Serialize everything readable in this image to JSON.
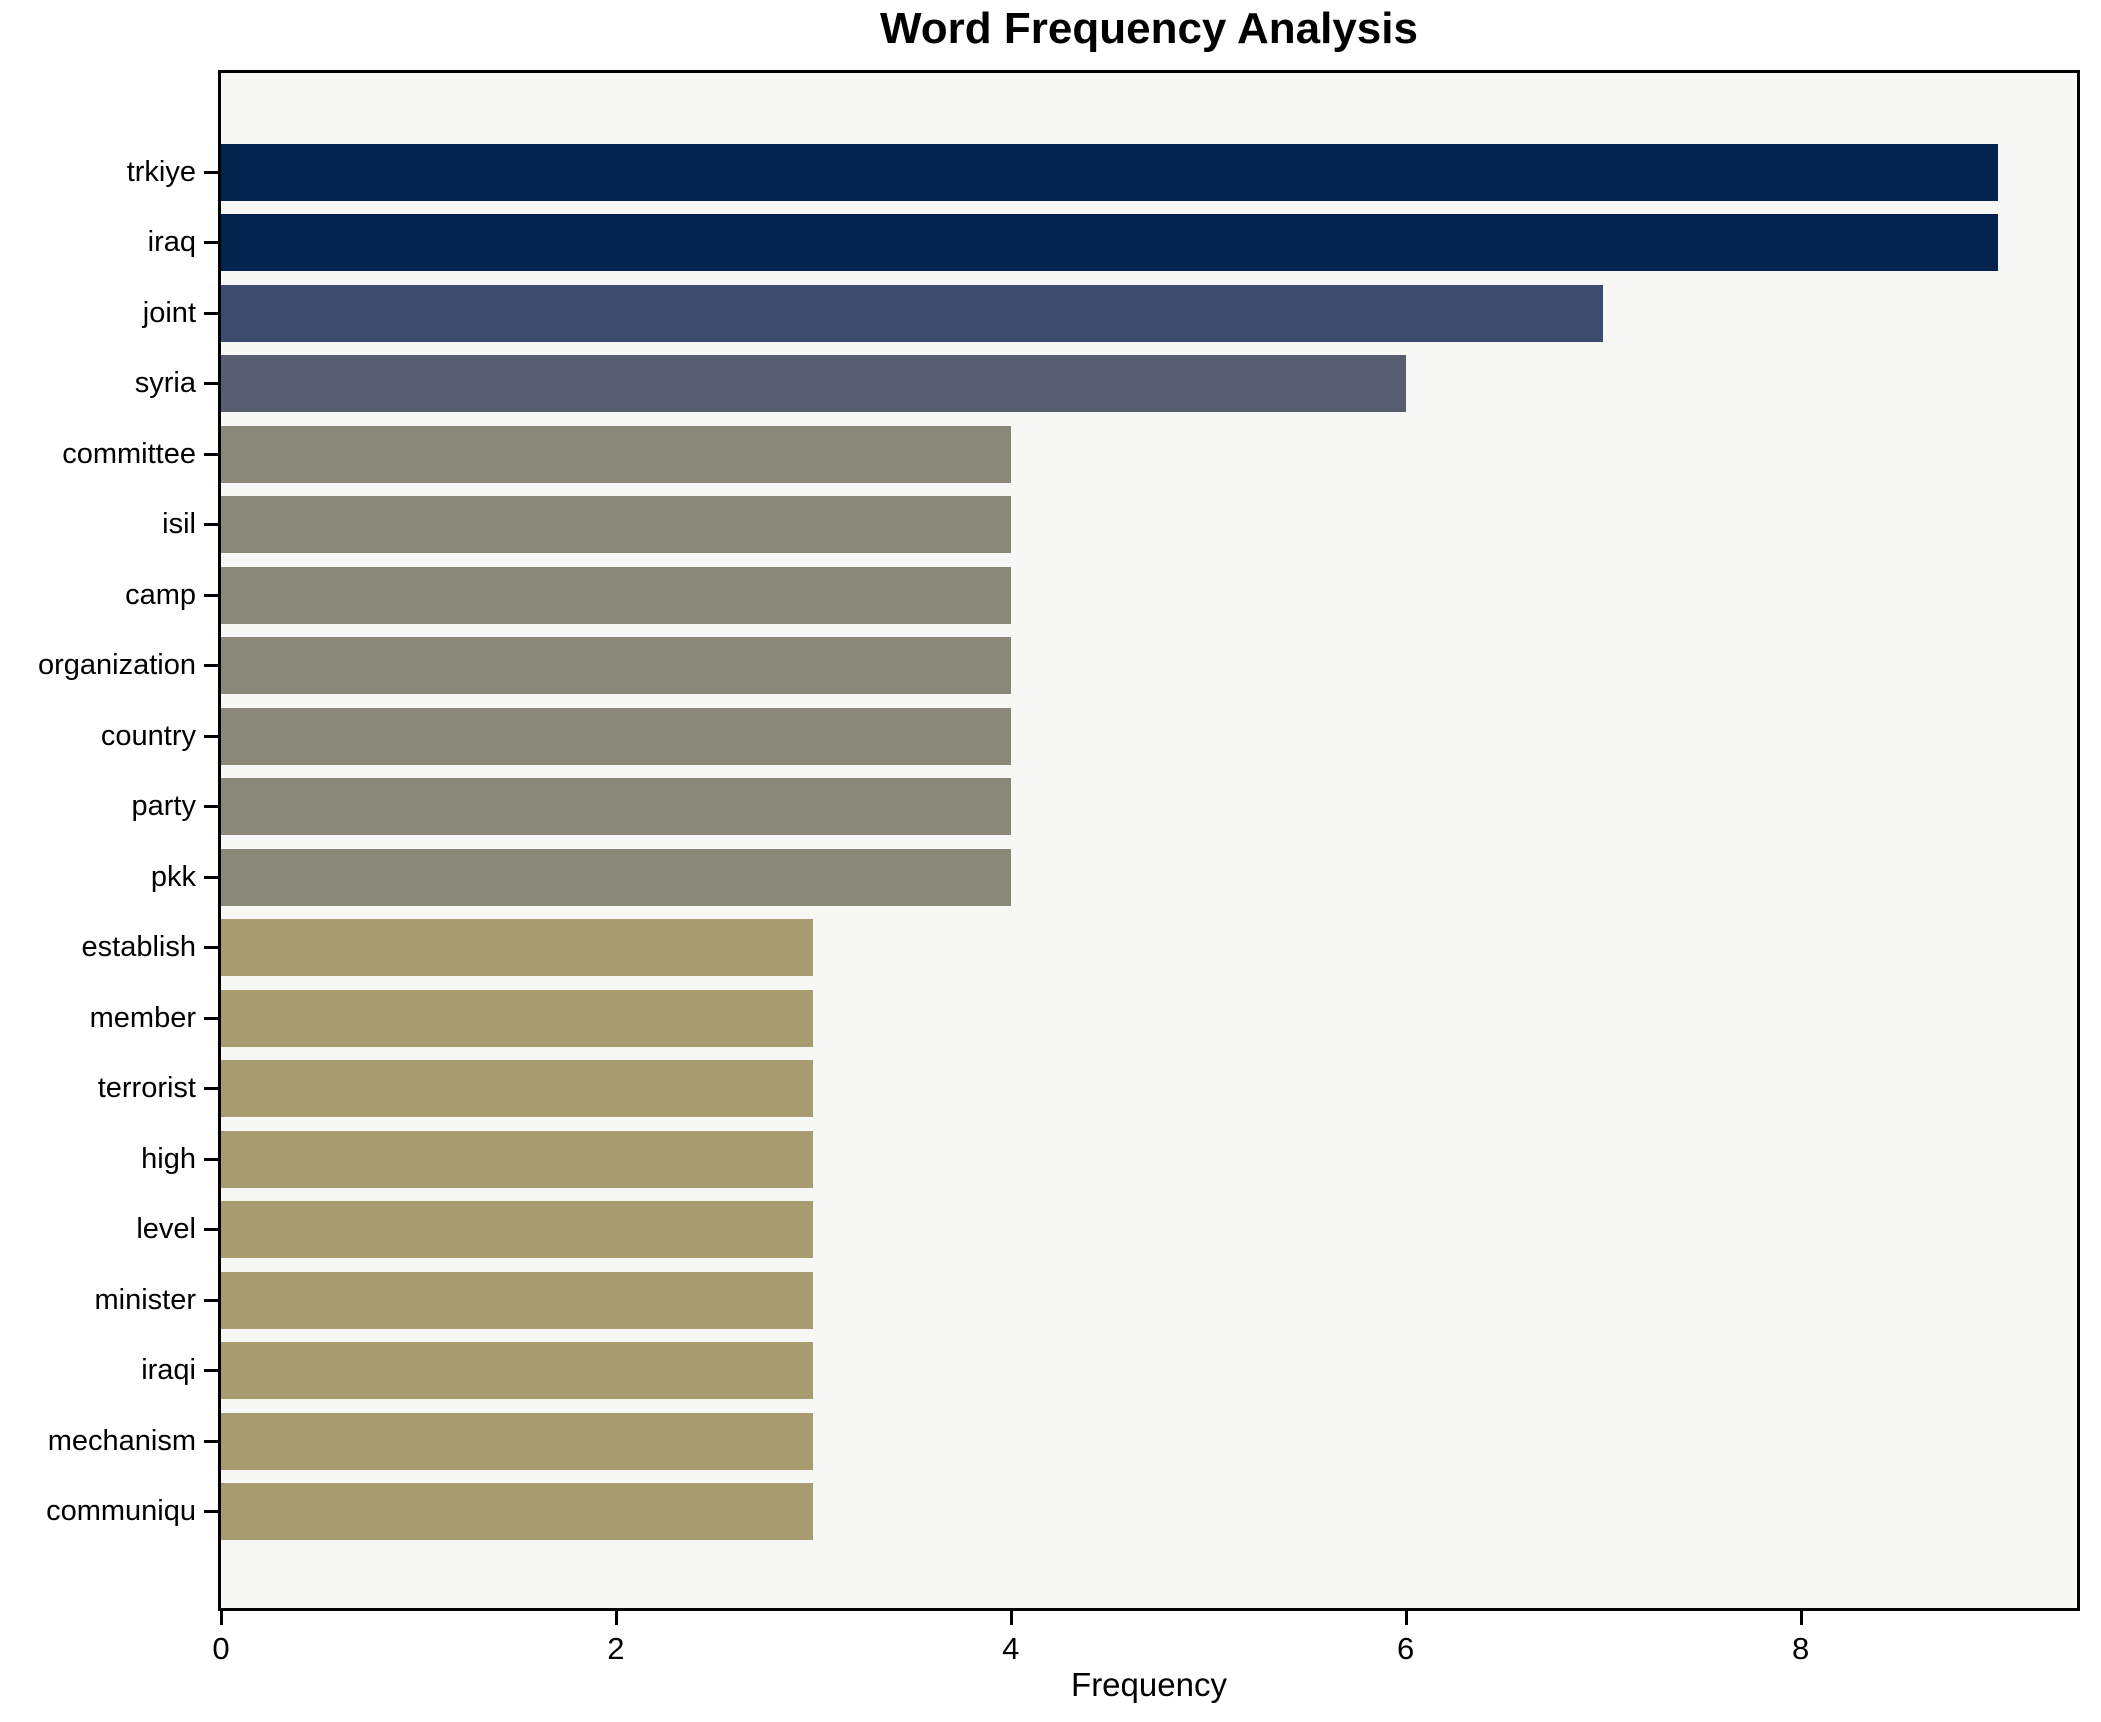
{
  "chart_data": {
    "type": "bar",
    "orientation": "horizontal",
    "title": "Word Frequency Analysis",
    "xlabel": "Frequency",
    "ylabel": "",
    "xlim": [
      0,
      9.4
    ],
    "xticks": [
      0,
      2,
      4,
      6,
      8
    ],
    "xtick_labels": [
      "0",
      "2",
      "4",
      "6",
      "8"
    ],
    "grid": false,
    "legend": "none",
    "categories": [
      "trkiye",
      "iraq",
      "joint",
      "syria",
      "committee",
      "isil",
      "camp",
      "organization",
      "country",
      "party",
      "pkk",
      "establish",
      "member",
      "terrorist",
      "high",
      "level",
      "minister",
      "iraqi",
      "mechanism",
      "communiqu"
    ],
    "values": [
      9,
      9,
      7,
      6,
      4,
      4,
      4,
      4,
      4,
      4,
      4,
      3,
      3,
      3,
      3,
      3,
      3,
      3,
      3,
      3
    ],
    "bar_colors": [
      "#02234e",
      "#02234e",
      "#3d4c6e",
      "#575e70",
      "#8a8878",
      "#8a8878",
      "#8a8878",
      "#8a8878",
      "#8a8878",
      "#8a8878",
      "#8a8878",
      "#a69c6f",
      "#a69c6f",
      "#a69c6f",
      "#a69c6f",
      "#a69c6f",
      "#a69c6f",
      "#a69c6f",
      "#a69c6f",
      "#a69c6f"
    ],
    "colors": {
      "plot_background": "#f7f7f6",
      "figure_background": "#ffffff",
      "spine": "#000000",
      "text": "#000000"
    }
  }
}
